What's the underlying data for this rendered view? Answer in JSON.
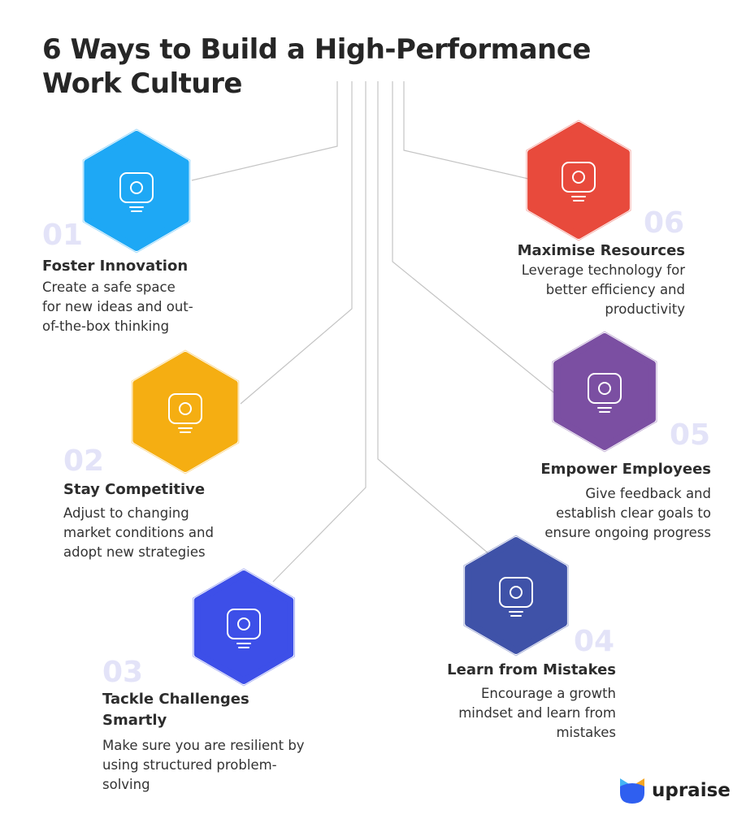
{
  "title": "6 Ways to Build a High-Performance Work Culture",
  "title_lines": [
    "6 Ways to Build a High-Performance",
    "Work Culture"
  ],
  "items": [
    {
      "number": "01",
      "heading": "Foster Innovation",
      "description": "Create a safe space for new ideas and out-of-the-box thinking",
      "color": "#1ea8f5",
      "icon": "lightbulb-gear-head-icon"
    },
    {
      "number": "02",
      "heading": "Stay Competitive",
      "description": "Adjust to changing market conditions and adopt new strategies",
      "color": "#f5ae12",
      "icon": "tug-of-war-trophy-icon"
    },
    {
      "number": "03",
      "heading": "Tackle Challenges Smartly",
      "description": "Make sure you are resilient by using structured problem-solving",
      "color": "#3d4fe8",
      "icon": "climber-flag-icon"
    },
    {
      "number": "04",
      "heading": "Learn from Mistakes",
      "description": "Encourage a growth mindset and learn from mistakes",
      "color": "#3f52a8",
      "icon": "person-tripping-icon"
    },
    {
      "number": "05",
      "heading": "Empower Employees",
      "description": "Give feedback and establish clear goals to ensure ongoing progress",
      "color": "#7b4fa2",
      "icon": "hands-supporting-person-icon"
    },
    {
      "number": "06",
      "heading": "Maximise Resources",
      "description": "Leverage technology for better efficiency and productivity",
      "color": "#e84a3c",
      "icon": "server-gauge-growth-icon"
    }
  ],
  "brand": {
    "name": "upraise",
    "colors": [
      "#2f6bf0",
      "#45b4f5",
      "#f5a623"
    ]
  }
}
